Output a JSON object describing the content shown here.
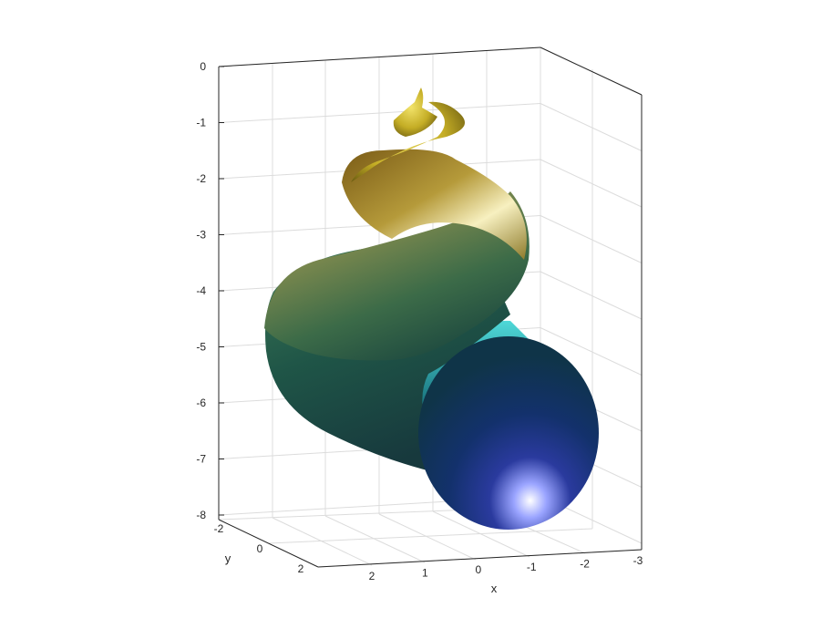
{
  "chart_data": {
    "type": "surface3d",
    "title": "",
    "description_shape": "helical tube (spiral horn) tapering to a point at the top, widest at the bottom",
    "xlabel": "x",
    "ylabel": "y",
    "zlabel": "",
    "xlim": [
      -3,
      2
    ],
    "ylim": [
      -2,
      2
    ],
    "zlim": [
      -8,
      0
    ],
    "xticks": [
      {
        "value": 2,
        "label": "2"
      },
      {
        "value": 1,
        "label": "1"
      },
      {
        "value": 0,
        "label": "0"
      },
      {
        "value": -1,
        "label": "-1"
      },
      {
        "value": -2,
        "label": "-2"
      },
      {
        "value": -3,
        "label": "-3"
      }
    ],
    "yticks": [
      {
        "value": -2,
        "label": "-2"
      },
      {
        "value": 0,
        "label": "0"
      },
      {
        "value": 2,
        "label": "2"
      }
    ],
    "zticks": [
      {
        "value": 0,
        "label": "0"
      },
      {
        "value": -1,
        "label": "-1"
      },
      {
        "value": -2,
        "label": "-2"
      },
      {
        "value": -3,
        "label": "-3"
      },
      {
        "value": -4,
        "label": "-4"
      },
      {
        "value": -5,
        "label": "-5"
      },
      {
        "value": -6,
        "label": "-6"
      },
      {
        "value": -7,
        "label": "-7"
      },
      {
        "value": -8,
        "label": "-8"
      }
    ],
    "grid": true,
    "box": true,
    "colormap_top": "#d4c030",
    "colormap_mid": "#2f6b50",
    "colormap_bottom": "#1a1f7a",
    "highlight_color": "#ffffff"
  }
}
